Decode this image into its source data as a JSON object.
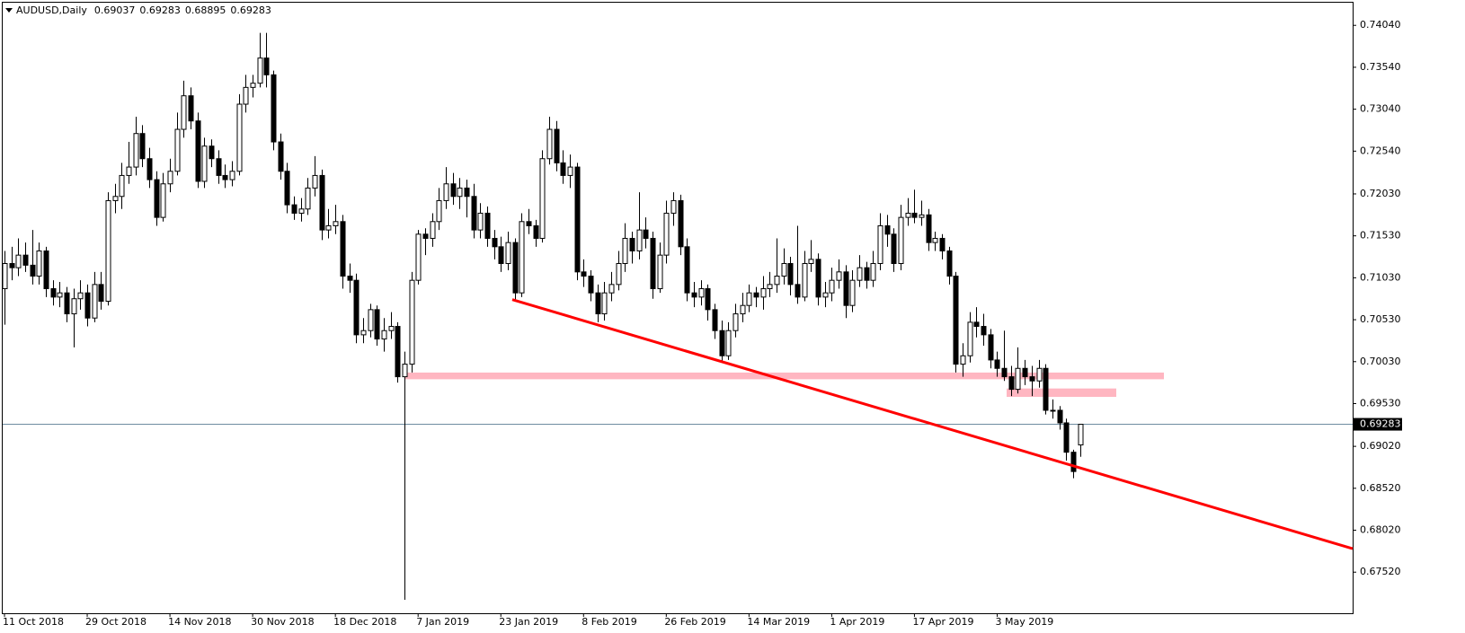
{
  "chart_data": {
    "type": "candlestick",
    "title": "AUDUSD,Daily",
    "categories": [
      "11 Oct 2018",
      null,
      null,
      null,
      null,
      null,
      null,
      null,
      null,
      null,
      null,
      null,
      "29 Oct 2018",
      null,
      null,
      null,
      null,
      null,
      null,
      null,
      null,
      null,
      null,
      null,
      "14 Nov 2018",
      null,
      null,
      null,
      null,
      null,
      null,
      null,
      null,
      null,
      null,
      null,
      "30 Nov 2018",
      null,
      null,
      null,
      null,
      null,
      null,
      null,
      null,
      null,
      null,
      null,
      "18 Dec 2018",
      null,
      null,
      null,
      null,
      null,
      null,
      null,
      null,
      null,
      null,
      null,
      "7 Jan 2019",
      null,
      null,
      null,
      null,
      null,
      null,
      null,
      null,
      null,
      null,
      null,
      "23 Jan 2019",
      null,
      null,
      null,
      null,
      null,
      null,
      null,
      null,
      null,
      null,
      null,
      "8 Feb 2019",
      null,
      null,
      null,
      null,
      null,
      null,
      null,
      null,
      null,
      null,
      null,
      "26 Feb 2019",
      null,
      null,
      null,
      null,
      null,
      null,
      null,
      null,
      null,
      null,
      null,
      "14 Mar 2019",
      null,
      null,
      null,
      null,
      null,
      null,
      null,
      null,
      null,
      null,
      null,
      "1 Apr 2019",
      null,
      null,
      null,
      null,
      null,
      null,
      null,
      null,
      null,
      null,
      null,
      "17 Apr 2019",
      null,
      null,
      null,
      null,
      null,
      null,
      null,
      null,
      null,
      null,
      null,
      "3 May 2019",
      null,
      null,
      null,
      null,
      null,
      null,
      null,
      null,
      null,
      null,
      null,
      null
    ],
    "ohlc": [
      [
        0.709,
        0.7135,
        0.7047,
        0.712
      ],
      [
        0.712,
        0.714,
        0.71,
        0.7115
      ],
      [
        0.7115,
        0.715,
        0.7105,
        0.713
      ],
      [
        0.713,
        0.7145,
        0.711,
        0.7118
      ],
      [
        0.7118,
        0.716,
        0.7095,
        0.7105
      ],
      [
        0.7105,
        0.7145,
        0.7095,
        0.7135
      ],
      [
        0.7135,
        0.714,
        0.708,
        0.709
      ],
      [
        0.709,
        0.71,
        0.707,
        0.708
      ],
      [
        0.708,
        0.7098,
        0.7068,
        0.7085
      ],
      [
        0.7085,
        0.7092,
        0.705,
        0.706
      ],
      [
        0.706,
        0.709,
        0.702,
        0.7078
      ],
      [
        0.7078,
        0.71,
        0.7065,
        0.7085
      ],
      [
        0.7085,
        0.7095,
        0.7045,
        0.7055
      ],
      [
        0.7055,
        0.711,
        0.705,
        0.7095
      ],
      [
        0.7095,
        0.711,
        0.7065,
        0.7075
      ],
      [
        0.7075,
        0.7205,
        0.707,
        0.7195
      ],
      [
        0.7195,
        0.7215,
        0.718,
        0.72
      ],
      [
        0.72,
        0.724,
        0.7185,
        0.7225
      ],
      [
        0.7225,
        0.7265,
        0.7215,
        0.7235
      ],
      [
        0.7235,
        0.7295,
        0.7225,
        0.7275
      ],
      [
        0.7275,
        0.7285,
        0.7235,
        0.7245
      ],
      [
        0.7245,
        0.7258,
        0.721,
        0.722
      ],
      [
        0.722,
        0.723,
        0.7165,
        0.7175
      ],
      [
        0.7175,
        0.7228,
        0.717,
        0.7215
      ],
      [
        0.7215,
        0.7245,
        0.7205,
        0.723
      ],
      [
        0.723,
        0.73,
        0.7225,
        0.728
      ],
      [
        0.728,
        0.7338,
        0.727,
        0.732
      ],
      [
        0.732,
        0.733,
        0.728,
        0.729
      ],
      [
        0.729,
        0.73,
        0.721,
        0.7218
      ],
      [
        0.7218,
        0.727,
        0.721,
        0.726
      ],
      [
        0.726,
        0.7268,
        0.7235,
        0.7245
      ],
      [
        0.7245,
        0.7255,
        0.7215,
        0.7225
      ],
      [
        0.7225,
        0.7238,
        0.721,
        0.722
      ],
      [
        0.722,
        0.7242,
        0.7212,
        0.723
      ],
      [
        0.723,
        0.7322,
        0.7225,
        0.731
      ],
      [
        0.731,
        0.7345,
        0.73,
        0.733
      ],
      [
        0.733,
        0.7345,
        0.7318,
        0.7335
      ],
      [
        0.7335,
        0.7395,
        0.733,
        0.7365
      ],
      [
        0.7365,
        0.7395,
        0.733,
        0.7345
      ],
      [
        0.7345,
        0.735,
        0.7255,
        0.7265
      ],
      [
        0.7265,
        0.7275,
        0.722,
        0.723
      ],
      [
        0.723,
        0.724,
        0.718,
        0.719
      ],
      [
        0.719,
        0.72,
        0.7172,
        0.718
      ],
      [
        0.718,
        0.7198,
        0.717,
        0.7185
      ],
      [
        0.7185,
        0.7222,
        0.7178,
        0.721
      ],
      [
        0.721,
        0.7248,
        0.72,
        0.7225
      ],
      [
        0.7225,
        0.7232,
        0.7148,
        0.716
      ],
      [
        0.716,
        0.7185,
        0.715,
        0.7165
      ],
      [
        0.7165,
        0.719,
        0.7155,
        0.717
      ],
      [
        0.717,
        0.7178,
        0.709,
        0.7105
      ],
      [
        0.7105,
        0.712,
        0.7085,
        0.71
      ],
      [
        0.71,
        0.7108,
        0.7025,
        0.7035
      ],
      [
        0.7035,
        0.7055,
        0.7025,
        0.704
      ],
      [
        0.704,
        0.7072,
        0.7032,
        0.7065
      ],
      [
        0.7065,
        0.707,
        0.7022,
        0.703
      ],
      [
        0.703,
        0.7055,
        0.7015,
        0.704
      ],
      [
        0.704,
        0.7062,
        0.703,
        0.7045
      ],
      [
        0.7045,
        0.705,
        0.6978,
        0.6985
      ],
      [
        0.6985,
        0.7015,
        0.6719,
        0.7
      ],
      [
        0.7,
        0.711,
        0.699,
        0.71
      ],
      [
        0.71,
        0.716,
        0.7095,
        0.7155
      ],
      [
        0.7155,
        0.7162,
        0.713,
        0.715
      ],
      [
        0.715,
        0.718,
        0.714,
        0.717
      ],
      [
        0.717,
        0.721,
        0.716,
        0.7195
      ],
      [
        0.7195,
        0.7235,
        0.7185,
        0.7215
      ],
      [
        0.7215,
        0.7228,
        0.719,
        0.72
      ],
      [
        0.72,
        0.7222,
        0.7185,
        0.721
      ],
      [
        0.721,
        0.722,
        0.7175,
        0.72
      ],
      [
        0.72,
        0.7215,
        0.715,
        0.716
      ],
      [
        0.716,
        0.7192,
        0.715,
        0.718
      ],
      [
        0.718,
        0.7188,
        0.714,
        0.715
      ],
      [
        0.715,
        0.716,
        0.7125,
        0.714
      ],
      [
        0.714,
        0.7152,
        0.711,
        0.712
      ],
      [
        0.712,
        0.7158,
        0.7112,
        0.7145
      ],
      [
        0.7145,
        0.715,
        0.7077,
        0.7085
      ],
      [
        0.7085,
        0.718,
        0.708,
        0.717
      ],
      [
        0.717,
        0.7185,
        0.7155,
        0.7165
      ],
      [
        0.7165,
        0.7172,
        0.714,
        0.715
      ],
      [
        0.715,
        0.7255,
        0.7145,
        0.7245
      ],
      [
        0.7245,
        0.7295,
        0.7238,
        0.728
      ],
      [
        0.728,
        0.729,
        0.723,
        0.724
      ],
      [
        0.724,
        0.7255,
        0.7215,
        0.7225
      ],
      [
        0.7225,
        0.725,
        0.721,
        0.7235
      ],
      [
        0.7235,
        0.724,
        0.71,
        0.711
      ],
      [
        0.711,
        0.7125,
        0.7092,
        0.7105
      ],
      [
        0.7105,
        0.7112,
        0.7075,
        0.7085
      ],
      [
        0.7085,
        0.7095,
        0.705,
        0.706
      ],
      [
        0.706,
        0.7098,
        0.7052,
        0.7085
      ],
      [
        0.7085,
        0.711,
        0.7075,
        0.7095
      ],
      [
        0.7095,
        0.7135,
        0.7088,
        0.712
      ],
      [
        0.712,
        0.7168,
        0.711,
        0.715
      ],
      [
        0.715,
        0.7158,
        0.712,
        0.7135
      ],
      [
        0.7135,
        0.7205,
        0.7125,
        0.716
      ],
      [
        0.716,
        0.7175,
        0.7138,
        0.715
      ],
      [
        0.715,
        0.7158,
        0.7078,
        0.709
      ],
      [
        0.709,
        0.7145,
        0.7085,
        0.713
      ],
      [
        0.713,
        0.7195,
        0.712,
        0.718
      ],
      [
        0.718,
        0.7205,
        0.7165,
        0.7195
      ],
      [
        0.7195,
        0.7202,
        0.713,
        0.714
      ],
      [
        0.714,
        0.715,
        0.7075,
        0.7085
      ],
      [
        0.7085,
        0.7098,
        0.7068,
        0.708
      ],
      [
        0.708,
        0.71,
        0.707,
        0.709
      ],
      [
        0.709,
        0.7095,
        0.7052,
        0.7065
      ],
      [
        0.7065,
        0.7072,
        0.703,
        0.704
      ],
      [
        0.704,
        0.7052,
        0.7004,
        0.701
      ],
      [
        0.701,
        0.705,
        0.7005,
        0.704
      ],
      [
        0.704,
        0.7072,
        0.7032,
        0.706
      ],
      [
        0.706,
        0.7085,
        0.705,
        0.707
      ],
      [
        0.707,
        0.7095,
        0.7062,
        0.7085
      ],
      [
        0.7085,
        0.7092,
        0.7068,
        0.708
      ],
      [
        0.708,
        0.7105,
        0.7065,
        0.709
      ],
      [
        0.709,
        0.711,
        0.708,
        0.7095
      ],
      [
        0.7095,
        0.715,
        0.7085,
        0.7105
      ],
      [
        0.7105,
        0.7138,
        0.7095,
        0.712
      ],
      [
        0.712,
        0.7128,
        0.7082,
        0.7095
      ],
      [
        0.7095,
        0.7165,
        0.7072,
        0.708
      ],
      [
        0.708,
        0.7135,
        0.7075,
        0.712
      ],
      [
        0.712,
        0.7148,
        0.711,
        0.7125
      ],
      [
        0.7125,
        0.7132,
        0.707,
        0.708
      ],
      [
        0.708,
        0.7098,
        0.7068,
        0.7085
      ],
      [
        0.7085,
        0.7115,
        0.7075,
        0.71
      ],
      [
        0.71,
        0.7125,
        0.709,
        0.711
      ],
      [
        0.711,
        0.7118,
        0.7055,
        0.707
      ],
      [
        0.707,
        0.7112,
        0.7062,
        0.71
      ],
      [
        0.71,
        0.713,
        0.7092,
        0.7115
      ],
      [
        0.7115,
        0.7122,
        0.709,
        0.71
      ],
      [
        0.71,
        0.7135,
        0.7092,
        0.712
      ],
      [
        0.712,
        0.718,
        0.7112,
        0.7165
      ],
      [
        0.7165,
        0.7178,
        0.714,
        0.7155
      ],
      [
        0.7155,
        0.7162,
        0.711,
        0.712
      ],
      [
        0.712,
        0.719,
        0.7112,
        0.7175
      ],
      [
        0.7175,
        0.7198,
        0.7165,
        0.718
      ],
      [
        0.718,
        0.7208,
        0.7168,
        0.7175
      ],
      [
        0.7175,
        0.7195,
        0.7165,
        0.7178
      ],
      [
        0.7178,
        0.7185,
        0.7135,
        0.7145
      ],
      [
        0.7145,
        0.7158,
        0.7135,
        0.715
      ],
      [
        0.715,
        0.7155,
        0.7125,
        0.7135
      ],
      [
        0.7135,
        0.714,
        0.7095,
        0.7105
      ],
      [
        0.7105,
        0.711,
        0.699,
        0.7
      ],
      [
        0.7,
        0.7025,
        0.6985,
        0.701
      ],
      [
        0.701,
        0.7062,
        0.7002,
        0.705
      ],
      [
        0.705,
        0.7068,
        0.7032,
        0.7045
      ],
      [
        0.7045,
        0.706,
        0.7022,
        0.7035
      ],
      [
        0.7035,
        0.7042,
        0.6995,
        0.7005
      ],
      [
        0.7005,
        0.7015,
        0.6985,
        0.6995
      ],
      [
        0.6995,
        0.704,
        0.698,
        0.6985
      ],
      [
        0.6985,
        0.6998,
        0.6962,
        0.697
      ],
      [
        0.697,
        0.702,
        0.6965,
        0.6995
      ],
      [
        0.6995,
        0.7005,
        0.6975,
        0.6985
      ],
      [
        0.6985,
        0.6998,
        0.6962,
        0.698
      ],
      [
        0.698,
        0.7005,
        0.6972,
        0.6995
      ],
      [
        0.6995,
        0.7,
        0.694,
        0.6945
      ],
      [
        0.6945,
        0.6958,
        0.6935,
        0.6945
      ],
      [
        0.6945,
        0.695,
        0.6922,
        0.693
      ],
      [
        0.693,
        0.6935,
        0.6885,
        0.6895
      ],
      [
        0.6895,
        0.6898,
        0.6864,
        0.6872
      ],
      [
        0.69037,
        0.69283,
        0.68895,
        0.69283
      ]
    ],
    "ylim": [
      0.6703,
      0.7431
    ],
    "yticks": [
      {
        "value": 0.7404,
        "label": "0.74040"
      },
      {
        "value": 0.7354,
        "label": "0.73540"
      },
      {
        "value": 0.7304,
        "label": "0.73040"
      },
      {
        "value": 0.7254,
        "label": "0.72540"
      },
      {
        "value": 0.7203,
        "label": "0.72030"
      },
      {
        "value": 0.7153,
        "label": "0.71530"
      },
      {
        "value": 0.7103,
        "label": "0.71030"
      },
      {
        "value": 0.7053,
        "label": "0.70530"
      },
      {
        "value": 0.7003,
        "label": "0.70030"
      },
      {
        "value": 0.6953,
        "label": "0.69530"
      },
      {
        "value": 0.6902,
        "label": "0.69020"
      },
      {
        "value": 0.6852,
        "label": "0.68520"
      },
      {
        "value": 0.6802,
        "label": "0.68020"
      },
      {
        "value": 0.6752,
        "label": "0.67520"
      }
    ],
    "trendline": [
      0.7077,
      0.678
    ],
    "trendline_color": "#ff0000",
    "zones": [
      [
        0.6982,
        0.699
      ],
      [
        0.6961,
        0.6971
      ]
    ],
    "zone_color": "#ffb6c1",
    "price_line_color": "#6e8ca0"
  }
}
